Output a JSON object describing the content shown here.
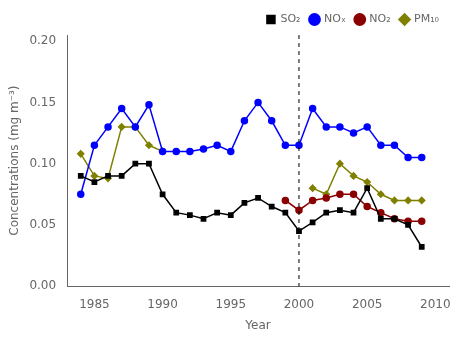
{
  "chart_data": {
    "type": "line",
    "x": [
      1984,
      1985,
      1986,
      1987,
      1988,
      1989,
      1990,
      1991,
      1992,
      1993,
      1994,
      1995,
      1996,
      1997,
      1998,
      1999,
      2000,
      2001,
      2002,
      2003,
      2004,
      2005,
      2006,
      2007,
      2008,
      2009
    ],
    "series": [
      {
        "name": "SO₂",
        "color": "#000000",
        "marker": "square",
        "values": [
          0.09,
          0.085,
          0.09,
          0.09,
          0.1,
          0.1,
          0.075,
          0.06,
          0.058,
          0.055,
          0.06,
          0.058,
          0.068,
          0.072,
          0.065,
          0.06,
          0.045,
          0.052,
          0.06,
          0.062,
          0.06,
          0.08,
          0.055,
          0.055,
          0.05,
          0.032
        ]
      },
      {
        "name": "NOₓ",
        "color": "#0000ff",
        "marker": "circle",
        "values": [
          0.075,
          0.115,
          0.13,
          0.145,
          0.13,
          0.148,
          0.11,
          0.11,
          0.11,
          0.112,
          0.115,
          0.11,
          0.135,
          0.15,
          0.135,
          0.115,
          0.115,
          0.145,
          0.13,
          0.13,
          0.125,
          0.13,
          0.115,
          0.115,
          0.105,
          0.105
        ]
      },
      {
        "name": "NO₂",
        "color": "#8b0000",
        "marker": "circle",
        "values": [
          null,
          null,
          null,
          null,
          null,
          null,
          null,
          null,
          null,
          null,
          null,
          null,
          null,
          null,
          null,
          0.07,
          0.062,
          0.07,
          0.072,
          0.075,
          0.075,
          0.065,
          0.06,
          0.055,
          0.053,
          0.053
        ]
      },
      {
        "name": "PM₁₀",
        "color": "#808000",
        "marker": "diamond",
        "values": [
          0.108,
          0.09,
          0.088,
          0.13,
          0.13,
          0.115,
          0.11,
          null,
          null,
          null,
          null,
          null,
          null,
          null,
          null,
          null,
          null,
          0.08,
          0.075,
          0.1,
          0.09,
          0.085,
          0.075,
          0.07,
          0.07,
          0.07
        ]
      }
    ],
    "vlines": [
      {
        "x": 2000,
        "color": "#000000",
        "line_style": "dashed"
      }
    ],
    "xlim": [
      1983,
      2011
    ],
    "ylim": [
      0.0,
      0.205
    ],
    "xticks": [
      1985,
      1990,
      1995,
      2000,
      2005,
      2010
    ],
    "yticks": [
      {
        "value": 0,
        "label": "0.00"
      },
      {
        "value": 0.05,
        "label": "0.05"
      },
      {
        "value": 0.1,
        "label": "0.10"
      },
      {
        "value": 0.15,
        "label": "0.15"
      },
      {
        "value": 0.2,
        "label": "0.20"
      }
    ],
    "xlabel": "Year",
    "ylabel": "Concentrations (mg m⁻³)",
    "grid": false,
    "legend": "upper right"
  }
}
